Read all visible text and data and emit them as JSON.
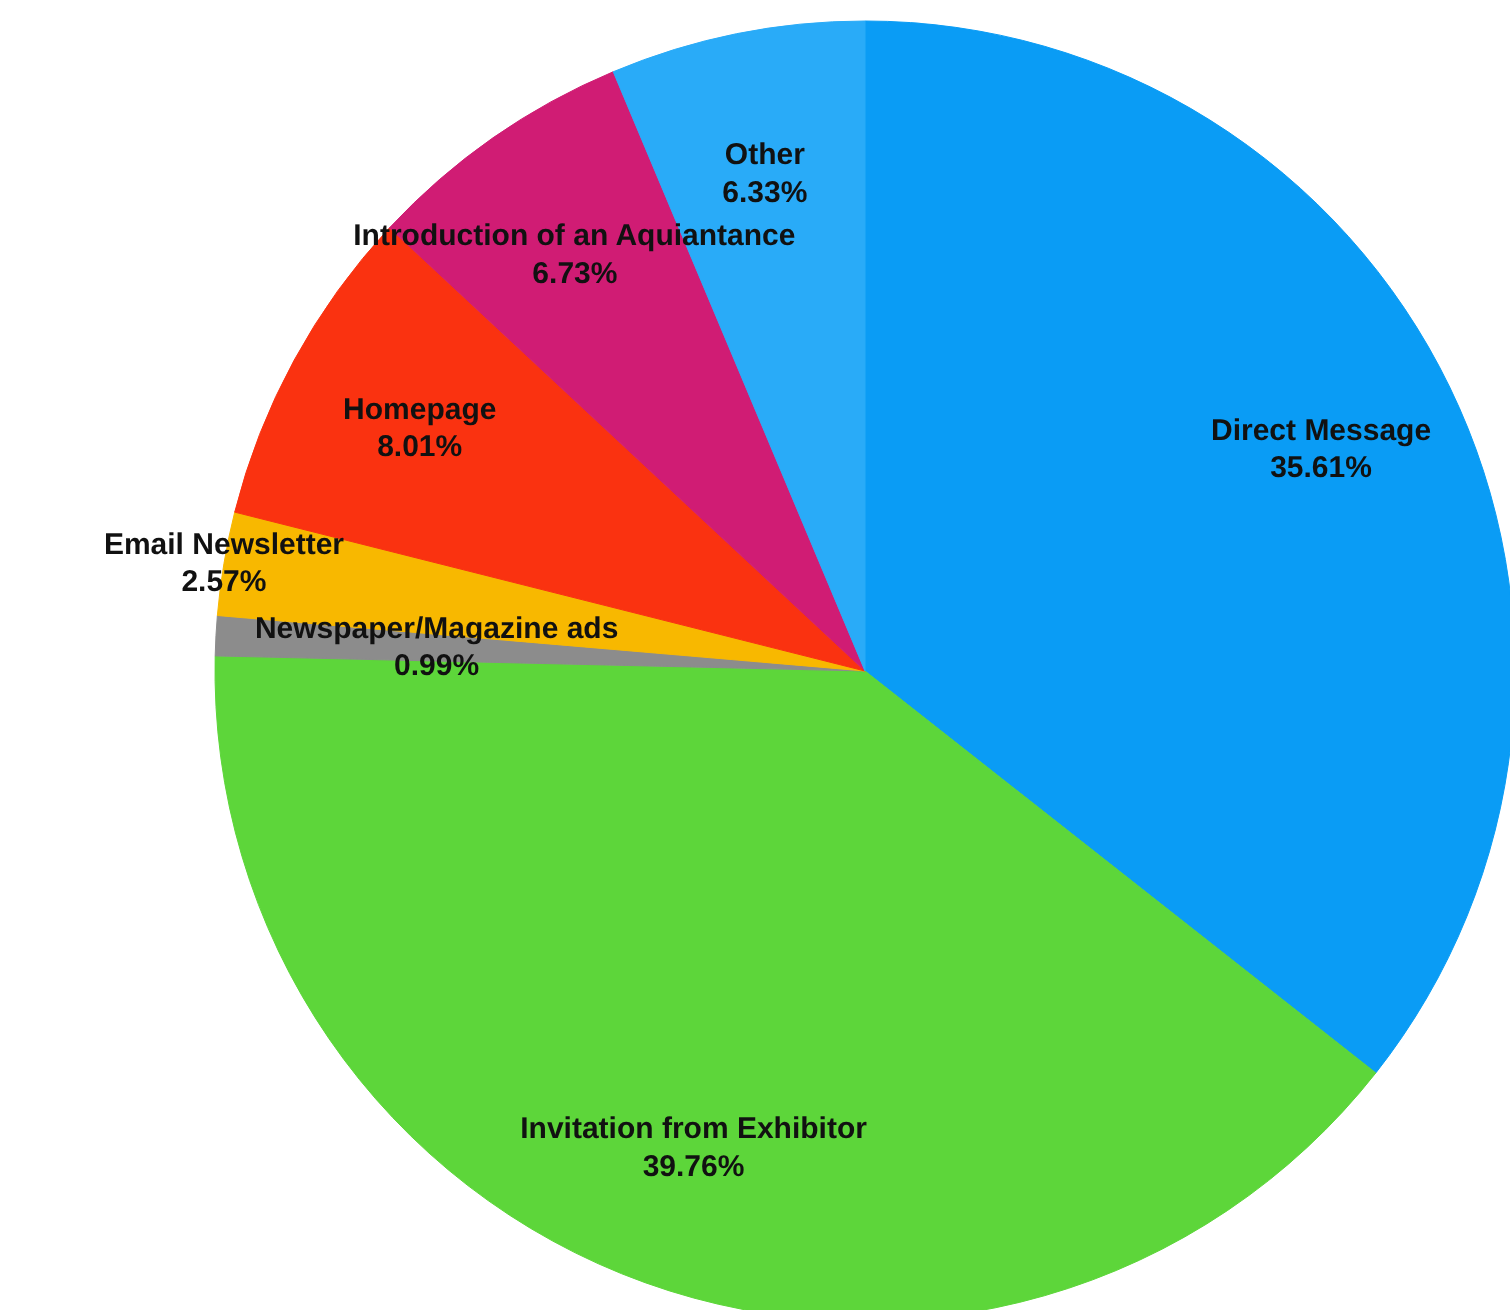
{
  "chart_data": {
    "type": "pie",
    "categories": [
      "Direct Message",
      "Invitation from Exhibitor",
      "Newspaper/Magazine ads",
      "Email Newsletter",
      "Homepage",
      "Introduction of an Aquiantance",
      "Other"
    ],
    "values": [
      35.61,
      39.76,
      0.99,
      2.57,
      8.01,
      6.73,
      6.33
    ],
    "colors": [
      "#0a9cf5",
      "#5dd63a",
      "#8c8c8c",
      "#f8b800",
      "#fa3210",
      "#d01c74",
      "#29abf8"
    ],
    "value_labels": [
      "35.61%",
      "39.76%",
      "0.99%",
      "2.57%",
      "8.01%",
      "6.73%",
      "6.33%"
    ]
  }
}
